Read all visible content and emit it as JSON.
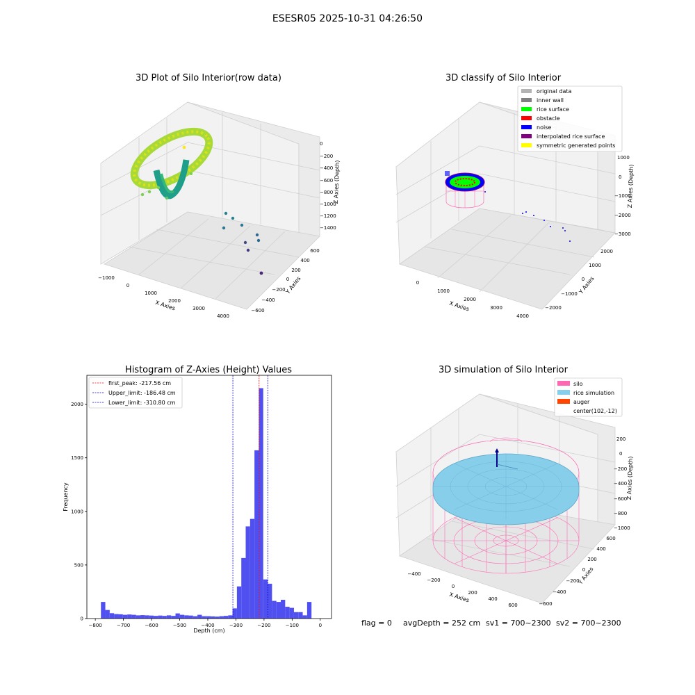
{
  "figure_title": "ESESR05 2025-10-31 04:26:50",
  "footer": {
    "flag": "flag = 0",
    "avg_depth": "avgDepth = 252 cm",
    "sv1": "sv1 = 700~2300",
    "sv2": "sv2 = 700~2300"
  },
  "colors": {
    "hist_bar": "#5050f0",
    "first_peak_line": "#ff0000",
    "limit_line": "#0000cc",
    "silo": "#ff69b4",
    "rice_simulation": "#87ceeb",
    "auger": "#ff4500",
    "original_data": "#b3b3b3",
    "inner_wall": "#808080",
    "rice_surface": "#00ff00",
    "obstacle": "#ff0000",
    "noise": "#0000ff",
    "interpolated_rice_surface": "#800080",
    "symmetric_generated_points": "#ffff00"
  },
  "chart_data": [
    {
      "type": "scatter",
      "projection": "3d",
      "title": "3D Plot of Silo Interior(row data)",
      "xlabel": "X Axies",
      "ylabel": "Y Axies",
      "zlabel": "Z Axies (Depth)",
      "x_ticks": [
        "−1000",
        "0",
        "1000",
        "2000",
        "3000",
        "4000"
      ],
      "y_ticks": [
        "−600",
        "−400",
        "−200",
        "0",
        "200",
        "400",
        "600"
      ],
      "z_ticks": [
        "−1400",
        "−1200",
        "−1000",
        "−800",
        "−600",
        "−400",
        "−200",
        "0"
      ],
      "colormap": "viridis",
      "outlier_points": [
        {
          "x": 3200,
          "y": -100,
          "z": -1100
        },
        {
          "x": 3300,
          "y": -50,
          "z": -1150
        },
        {
          "x": 3400,
          "y": 0,
          "z": -1200
        },
        {
          "x": 3500,
          "y": 50,
          "z": -1250
        },
        {
          "x": 3600,
          "y": 100,
          "z": -1300
        },
        {
          "x": 3700,
          "y": 150,
          "z": -1350
        },
        {
          "x": 4000,
          "y": 300,
          "z": -1450
        }
      ]
    },
    {
      "type": "scatter",
      "projection": "3d",
      "title": "3D classify of Silo Interior",
      "xlabel": "X Axies",
      "ylabel": "Y Axies",
      "zlabel": "Z Axies (Depth)",
      "x_ticks": [
        "0",
        "1000",
        "2000",
        "3000",
        "4000"
      ],
      "y_ticks": [
        "−2000",
        "−1000",
        "0",
        "1000",
        "2000"
      ],
      "z_ticks": [
        "−3000",
        "−2000",
        "−1000",
        "0",
        "1000"
      ],
      "legend": {
        "placement": "top-right",
        "entries": [
          "original data",
          "inner wall",
          "rice surface",
          "obstacle",
          "noise",
          "interpolated rice surface",
          "symmetric generated points"
        ]
      }
    },
    {
      "type": "bar",
      "title": "Histogram of Z-Axies (Height) Values",
      "xlabel": "Depth (cm)",
      "ylabel": "Frequency",
      "xlim": [
        -830,
        40
      ],
      "ylim": [
        0,
        2270
      ],
      "x_ticks": [
        -800,
        -700,
        -600,
        -500,
        -400,
        -300,
        -200,
        -100,
        0
      ],
      "x_tick_labels": [
        "−800",
        "−700",
        "−600",
        "−500",
        "−400",
        "−300",
        "−200",
        "−100",
        "0"
      ],
      "y_ticks": [
        0,
        500,
        1000,
        1500,
        2000
      ],
      "y_tick_labels": [
        "0",
        "500",
        "1000",
        "1500",
        "2000"
      ],
      "bin_start": -780,
      "bin_width": 15.6,
      "values": [
        155,
        80,
        50,
        42,
        40,
        35,
        38,
        35,
        30,
        32,
        30,
        28,
        25,
        28,
        25,
        30,
        25,
        48,
        35,
        30,
        28,
        22,
        35,
        22,
        22,
        20,
        18,
        22,
        25,
        30,
        95,
        300,
        565,
        860,
        930,
        1570,
        2150,
        365,
        325,
        165,
        155,
        175,
        110,
        100,
        60,
        60,
        30,
        155
      ],
      "vlines": [
        {
          "label": "first_peak: -217.56 cm",
          "x": -217.56,
          "color": "#ff0000"
        },
        {
          "label": "Upper_limit: -186.48 cm",
          "x": -186.48,
          "color": "#0000cc"
        },
        {
          "label": "Lower_limit: -310.80 cm",
          "x": -310.8,
          "color": "#0000cc"
        }
      ],
      "legend": {
        "placement": "top-left"
      }
    },
    {
      "type": "surface",
      "projection": "3d",
      "title": "3D simulation of Silo Interior",
      "xlabel": "X Axies",
      "ylabel": "Y Axies",
      "zlabel": "Z Axies (Depth)",
      "x_ticks": [
        "−400",
        "−200",
        "0",
        "200",
        "400",
        "600"
      ],
      "y_ticks": [
        "−600",
        "−400",
        "−200",
        "0",
        "200",
        "400",
        "600"
      ],
      "z_ticks": [
        "−1000",
        "−800",
        "−600",
        "−400",
        "−200",
        "0",
        "200"
      ],
      "legend": {
        "placement": "top-right",
        "entries": [
          "silo",
          "rice simulation",
          "auger",
          "center(102,-12)"
        ]
      }
    }
  ]
}
